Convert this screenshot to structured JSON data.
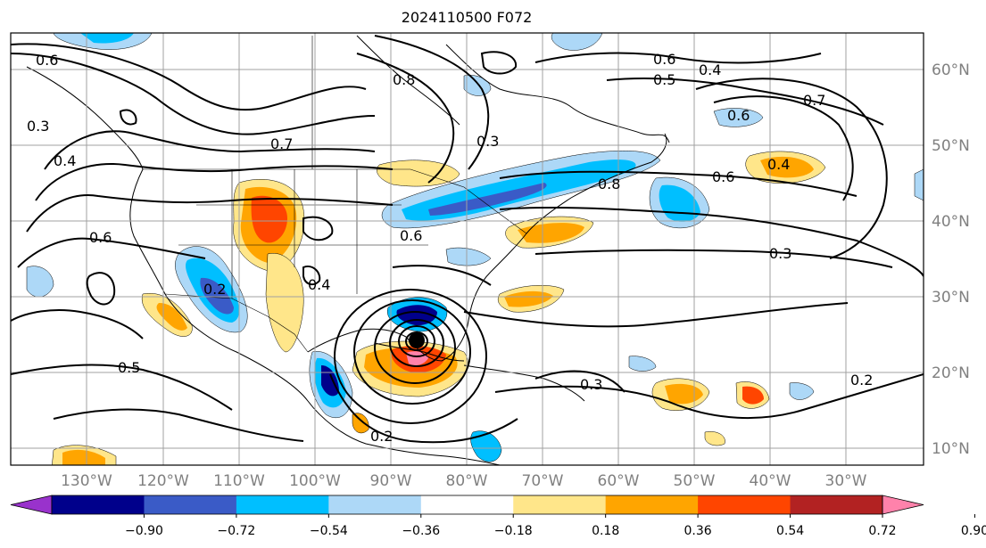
{
  "title": "2024110500 F072",
  "map": {
    "lat_labels": [
      "60°N",
      "50°N",
      "40°N",
      "30°N",
      "20°N",
      "10°N"
    ],
    "lon_labels": [
      "130°W",
      "120°W",
      "110°W",
      "100°W",
      "90°W",
      "80°W",
      "70°W",
      "60°W",
      "50°W",
      "40°W",
      "30°W"
    ],
    "contour_labels": [
      "0.6",
      "0.3",
      "0.4",
      "0.8",
      "0.6",
      "0.5",
      "0.4",
      "0.7",
      "0.6",
      "0.8",
      "0.4",
      "0.6",
      "0.3",
      "0.2",
      "0.3",
      "0.5",
      "0.6",
      "0.2",
      "0.2",
      "0.4",
      "0.7",
      "0.6",
      "0.3"
    ],
    "storm_marker": "hurricane-center"
  },
  "colorbar": {
    "tick_labels": [
      "−0.90",
      "−0.72",
      "−0.54",
      "−0.36",
      "−0.18",
      "0.18",
      "0.36",
      "0.54",
      "0.72",
      "0.90"
    ],
    "colors": [
      "#9932cc",
      "#00008b",
      "#3a5bc7",
      "#00bfff",
      "#add8f7",
      "#ffffff",
      "#ffe68a",
      "#ffa500",
      "#ff4500",
      "#b22222",
      "#ff82ab"
    ]
  }
}
